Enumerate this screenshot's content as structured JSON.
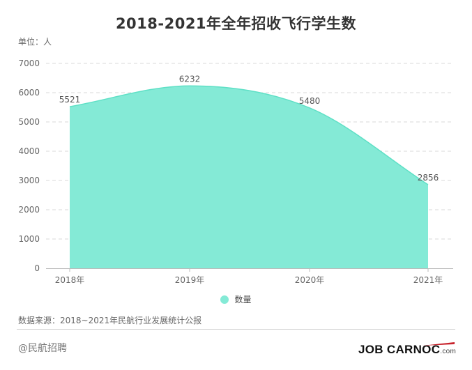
{
  "title": "2018-2021年全年招收飞行学生数",
  "unit": "单位：人",
  "source": "数据来源：2018~2021年民航行业发展统计公报",
  "watermark": "@民航招聘",
  "brand": {
    "name": "JOB CARNOC",
    "suffix": ".com",
    "color": "#111111",
    "accent": "#c8232c"
  },
  "colors": {
    "area_fill": "#84ead6",
    "area_line": "#5fe0c6",
    "grid": "#d9d9d9",
    "axis_text": "#666666"
  },
  "chart_data": {
    "type": "area",
    "title": "2018-2021年全年招收飞行学生数",
    "categories": [
      "2018年",
      "2019年",
      "2020年",
      "2021年"
    ],
    "series": [
      {
        "name": "数量",
        "values": [
          5521,
          6232,
          5480,
          2856
        ],
        "color": "#84ead6"
      }
    ],
    "ylim": [
      0,
      7000
    ],
    "yticks": [
      0,
      1000,
      2000,
      3000,
      4000,
      5000,
      6000,
      7000
    ],
    "xlabel": "",
    "ylabel": "",
    "grid": true,
    "smooth": true,
    "legend": "bottom"
  }
}
